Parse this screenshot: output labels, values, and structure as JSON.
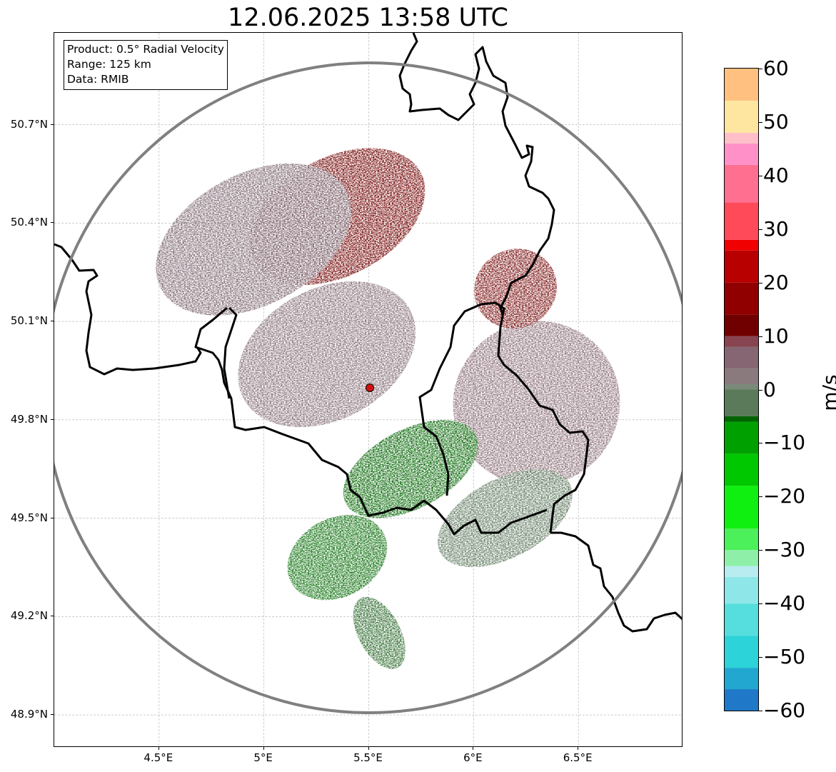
{
  "title": "12.06.2025 13:58 UTC",
  "info_box": {
    "product": "Product: 0.5° Radial Velocity",
    "range": "Range: 125 km",
    "data": "Data: RMIB"
  },
  "map": {
    "lon_range": [
      4.0,
      7.0
    ],
    "lat_range": [
      48.8,
      50.98
    ],
    "radar_site": {
      "lon": 5.505,
      "lat": 49.914
    },
    "range_ring_km": 125,
    "gridlines": true,
    "y_ticks": [
      "50.7°N",
      "50.4°N",
      "50.1°N",
      "49.8°N",
      "49.5°N",
      "49.2°N",
      "48.9°N"
    ],
    "y_tick_values": [
      50.7,
      50.4,
      50.1,
      49.8,
      49.5,
      49.2,
      48.9
    ],
    "x_ticks": [
      "4.5°E",
      "5°E",
      "5.5°E",
      "6°E",
      "6.5°E"
    ],
    "x_tick_values": [
      4.5,
      5.0,
      5.5,
      6.0,
      6.5
    ],
    "colors": {
      "ring": "#808080",
      "border": "#000000",
      "site_marker": "#d41010",
      "grid": "#b0b0b0"
    },
    "echo_regions": [
      {
        "name": "inbound-north",
        "lon": 5.35,
        "lat": 50.42,
        "color": "#720000",
        "rx": 0.45,
        "ry": 0.18
      },
      {
        "name": "northwest-muted",
        "lon": 4.95,
        "lat": 50.35,
        "color": "#7e6872",
        "rx": 0.5,
        "ry": 0.2
      },
      {
        "name": "center-muted",
        "lon": 5.3,
        "lat": 50.0,
        "color": "#856f78",
        "rx": 0.45,
        "ry": 0.2
      },
      {
        "name": "east-muted",
        "lon": 6.3,
        "lat": 49.85,
        "color": "#8a6e76",
        "rx": 0.4,
        "ry": 0.25
      },
      {
        "name": "outbound-south",
        "lon": 5.7,
        "lat": 49.65,
        "color": "#006400",
        "rx": 0.35,
        "ry": 0.12
      },
      {
        "name": "southeast-green",
        "lon": 6.15,
        "lat": 49.5,
        "color": "#5f7a5f",
        "rx": 0.35,
        "ry": 0.12
      },
      {
        "name": "south-green",
        "lon": 5.35,
        "lat": 49.38,
        "color": "#0a6e0a",
        "rx": 0.25,
        "ry": 0.12
      },
      {
        "name": "south-tail",
        "lon": 5.55,
        "lat": 49.15,
        "color": "#2e6b2e",
        "rx": 0.1,
        "ry": 0.12
      },
      {
        "name": "inbound-northeast",
        "lon": 6.2,
        "lat": 50.2,
        "color": "#7a1010",
        "rx": 0.2,
        "ry": 0.12
      }
    ]
  },
  "colorbar": {
    "label": "m/s",
    "ticks": [
      "60",
      "50",
      "40",
      "30",
      "20",
      "10",
      "0",
      "−10",
      "−20",
      "−30",
      "−40",
      "−50",
      "−60"
    ],
    "tick_values": [
      60,
      50,
      40,
      30,
      20,
      10,
      0,
      -10,
      -20,
      -30,
      -40,
      -50,
      -60
    ],
    "range": [
      -60,
      60
    ],
    "stops": [
      {
        "v": -60,
        "color": "#1f78c8"
      },
      {
        "v": -56,
        "color": "#22a8d0"
      },
      {
        "v": -52,
        "color": "#2cd3d8"
      },
      {
        "v": -46,
        "color": "#55dedd"
      },
      {
        "v": -40,
        "color": "#8fe6e8"
      },
      {
        "v": -35,
        "color": "#b8ecf0"
      },
      {
        "v": -33,
        "color": "#8ef0a8"
      },
      {
        "v": -30,
        "color": "#4cf05a"
      },
      {
        "v": -26,
        "color": "#10f010"
      },
      {
        "v": -18,
        "color": "#00c800"
      },
      {
        "v": -12,
        "color": "#00a000"
      },
      {
        "v": -6,
        "color": "#006400"
      },
      {
        "v": -5,
        "color": "#5a7a5a"
      },
      {
        "v": 0,
        "color": "#7a8a7a"
      },
      {
        "v": 1,
        "color": "#8a7a7e"
      },
      {
        "v": 4,
        "color": "#866672"
      },
      {
        "v": 8,
        "color": "#884450"
      },
      {
        "v": 10,
        "color": "#700000"
      },
      {
        "v": 14,
        "color": "#900000"
      },
      {
        "v": 20,
        "color": "#b80000"
      },
      {
        "v": 26,
        "color": "#f00000"
      },
      {
        "v": 28,
        "color": "#ff4a5a"
      },
      {
        "v": 35,
        "color": "#ff7090"
      },
      {
        "v": 42,
        "color": "#ff90c8"
      },
      {
        "v": 46,
        "color": "#ffbfc8"
      },
      {
        "v": 48,
        "color": "#ffe6a0"
      },
      {
        "v": 54,
        "color": "#ffc080"
      },
      {
        "v": 60,
        "color": "#ffa060"
      }
    ]
  }
}
